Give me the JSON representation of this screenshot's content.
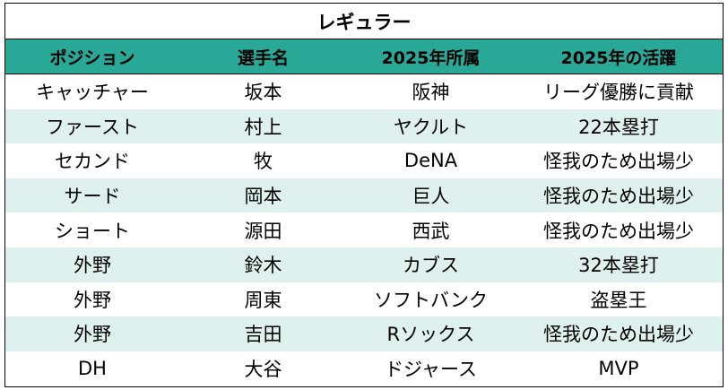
{
  "title": "レギュラー",
  "colors": {
    "header_bg": "#2aa897",
    "stripe_bg": "#dff1ee",
    "border": "#000000"
  },
  "columns": [
    "ポジション",
    "選手名",
    "2025年所属",
    "2025年の活躍"
  ],
  "rows": [
    [
      "キャッチャー",
      "坂本",
      "阪神",
      "リーグ優勝に貢献"
    ],
    [
      "ファースト",
      "村上",
      "ヤクルト",
      "22本塁打"
    ],
    [
      "セカンド",
      "牧",
      "DeNA",
      "怪我のため出場少"
    ],
    [
      "サード",
      "岡本",
      "巨人",
      "怪我のため出場少"
    ],
    [
      "ショート",
      "源田",
      "西武",
      "怪我のため出場少"
    ],
    [
      "外野",
      "鈴木",
      "カブス",
      "32本塁打"
    ],
    [
      "外野",
      "周東",
      "ソフトバンク",
      "盗塁王"
    ],
    [
      "外野",
      "吉田",
      "Rソックス",
      "怪我のため出場少"
    ],
    [
      "DH",
      "大谷",
      "ドジャース",
      "MVP"
    ]
  ]
}
